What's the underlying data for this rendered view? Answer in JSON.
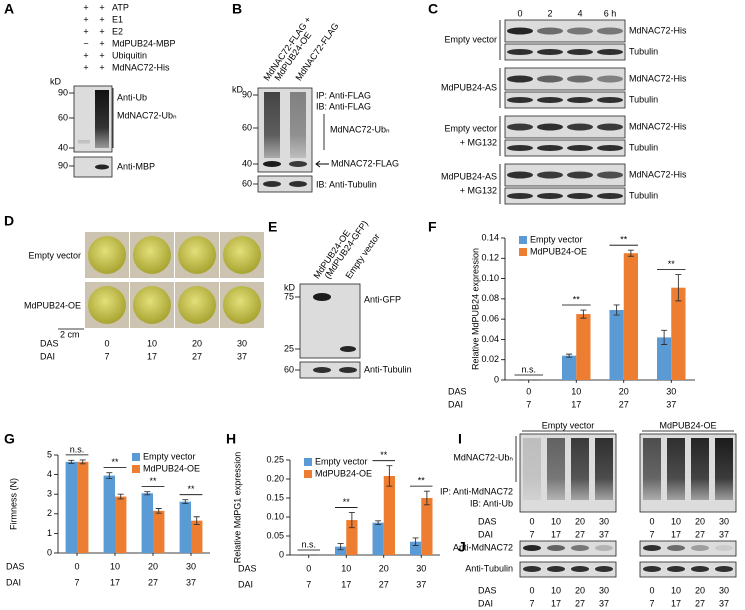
{
  "chart_data": [
    {
      "type": "bar",
      "label": "F",
      "y_label": "Relative MdPUB24 expression",
      "categories": [
        "0",
        "10",
        "20",
        "30"
      ],
      "categories_2": [
        "7",
        "17",
        "27",
        "37"
      ],
      "category_rows": [
        "DAS",
        "DAI"
      ],
      "series": [
        {
          "name": "Empty vector",
          "color": "#5b9bd5",
          "values": [
            0,
            0.024,
            0.069,
            0.042
          ],
          "errors": [
            0,
            0.0015,
            0.005,
            0.007
          ]
        },
        {
          "name": "MdPUB24-OE",
          "color": "#ed7d31",
          "values": [
            0,
            0.065,
            0.125,
            0.091
          ],
          "errors": [
            0,
            0.004,
            0.003,
            0.013
          ]
        }
      ],
      "annotations": [
        "n.s.",
        "**",
        "**",
        "**"
      ],
      "ylim": [
        0,
        0.14
      ],
      "yticks": [
        0,
        0.02,
        0.04,
        0.06,
        0.08,
        {
          "value": 0.1,
          "label": "0.10"
        },
        0.12,
        0.14
      ],
      "legend": "upper left"
    },
    {
      "type": "bar",
      "label": "G",
      "y_label": "Firmness (N)",
      "categories": [
        "0",
        "10",
        "20",
        "30"
      ],
      "categories_2": [
        "7",
        "17",
        "27",
        "37"
      ],
      "category_rows": [
        "DAS",
        "DAI"
      ],
      "series": [
        {
          "name": "Empty vector",
          "color": "#5b9bd5",
          "values": [
            4.65,
            3.95,
            3.05,
            2.62
          ],
          "errors": [
            0.08,
            0.15,
            0.08,
            0.1
          ]
        },
        {
          "name": "MdPUB24-OE",
          "color": "#ed7d31",
          "values": [
            4.65,
            2.88,
            2.15,
            1.65
          ],
          "errors": [
            0.1,
            0.12,
            0.12,
            0.2
          ]
        }
      ],
      "annotations": [
        "n.s.",
        "**",
        "**",
        "**"
      ],
      "ylim": [
        0,
        5
      ],
      "yticks": [
        0,
        1,
        2,
        3,
        4,
        5
      ],
      "legend": "upper right"
    },
    {
      "type": "bar",
      "label": "H",
      "y_label": "Relative MdPG1 expression",
      "categories": [
        "0",
        "10",
        "20",
        "30"
      ],
      "categories_2": [
        "7",
        "17",
        "27",
        "37"
      ],
      "category_rows": [
        "DAS",
        "DAI"
      ],
      "series": [
        {
          "name": "Empty vector",
          "color": "#5b9bd5",
          "values": [
            0,
            0.022,
            0.085,
            0.035
          ],
          "errors": [
            0,
            0.008,
            0.005,
            0.01
          ]
        },
        {
          "name": "MdPUB24-OE",
          "color": "#ed7d31",
          "values": [
            0,
            0.092,
            0.208,
            0.15
          ],
          "errors": [
            0,
            0.02,
            0.027,
            0.018
          ]
        }
      ],
      "annotations": [
        "n.s.",
        "**",
        "**",
        "**"
      ],
      "ylim": [
        0,
        0.25
      ],
      "yticks": [
        0,
        0.05,
        {
          "value": 0.1,
          "label": "0.10"
        },
        0.15,
        {
          "value": 0.2,
          "label": "0.20"
        },
        0.25
      ],
      "legend": "upper left"
    }
  ],
  "panels": {
    "A": {
      "label": "A",
      "conditions": [
        {
          "name": "ATP",
          "signs": [
            "+",
            "+"
          ]
        },
        {
          "name": "E1",
          "signs": [
            "+",
            "+"
          ]
        },
        {
          "name": "E2",
          "signs": [
            "+",
            "+"
          ]
        },
        {
          "name": "MdPUB24-MBP",
          "signs": [
            "−",
            "+"
          ]
        },
        {
          "name": "Ubiquitin",
          "signs": [
            "+",
            "+"
          ]
        },
        {
          "name": "MdNAC72-His",
          "signs": [
            "+",
            "+"
          ]
        }
      ],
      "kd": "kD",
      "markers_upper": [
        "90",
        "60",
        "40"
      ],
      "markers_lower": [
        "90"
      ],
      "labels": [
        "Anti-Ub",
        "MdNAC72-Ubₙ",
        "Anti-MBP"
      ]
    },
    "B": {
      "label": "B",
      "lanes": [
        [
          "MdNAC72-FLAG +",
          "MdPUB24-OE"
        ],
        [
          "MdNAC72-FLAG"
        ]
      ],
      "kd": "kD",
      "markers_upper": [
        "90",
        "60",
        "40"
      ],
      "markers_lower": [
        "60"
      ],
      "labels": [
        "IP: Anti-FLAG",
        "IB: Anti-FLAG",
        "MdNAC72-Ubₙ",
        "MdNAC72-FLAG",
        "IB: Anti-Tubulin"
      ]
    },
    "C": {
      "label": "C",
      "times": [
        "0",
        "2",
        "4",
        "6 h"
      ],
      "groups": [
        {
          "lines": [
            "Empty vector"
          ],
          "bands": [
            "MdNAC72-His",
            "Tubulin"
          ]
        },
        {
          "lines": [
            "MdPUB24-AS"
          ],
          "bands": [
            "MdNAC72-His",
            "Tubulin"
          ]
        },
        {
          "lines": [
            "Empty vector",
            "+ MG132"
          ],
          "bands": [
            "MdNAC72-His",
            "Tubulin"
          ]
        },
        {
          "lines": [
            "MdPUB24-AS",
            "+ MG132"
          ],
          "bands": [
            "MdNAC72-His",
            "Tubulin"
          ]
        }
      ]
    },
    "D": {
      "label": "D",
      "rows": [
        "Empty vector",
        "MdPUB24-OE"
      ],
      "scale": "2 cm",
      "row_labels": [
        "DAS",
        "DAI"
      ],
      "das": [
        "0",
        "10",
        "20",
        "30"
      ],
      "dai": [
        "7",
        "17",
        "27",
        "37"
      ]
    },
    "E": {
      "label": "E",
      "lanes": [
        [
          "MdPUB24-OE",
          "(MdPUB24-GFP)"
        ],
        [
          "Empty vector"
        ]
      ],
      "kd": "kD",
      "markers_upper": [
        "75",
        "25"
      ],
      "markers_lower": [
        "60"
      ],
      "labels": [
        "Anti-GFP",
        "Anti-Tubulin"
      ]
    },
    "I": {
      "label": "I",
      "row_labels": [
        "DAS",
        "DAI"
      ],
      "labels": [
        "MdNAC72-Ubₙ",
        "IP: Anti-MdNAC72",
        "IB: Anti-Ub"
      ],
      "groups": [
        {
          "name": "Empty vector",
          "das": [
            "0",
            "10",
            "20",
            "30"
          ],
          "dai": [
            "7",
            "17",
            "27",
            "37"
          ]
        },
        {
          "name": "MdPUB24-OE",
          "das": [
            "0",
            "10",
            "20",
            "30"
          ],
          "dai": [
            "7",
            "17",
            "27",
            "37"
          ]
        }
      ]
    },
    "J": {
      "label": "J",
      "row_labels": [
        "DAS",
        "DAI"
      ],
      "labels": [
        "Anti-MdNAC72",
        "Anti-Tubulin"
      ],
      "groups": [
        {
          "das": [
            "0",
            "10",
            "20",
            "30"
          ],
          "dai": [
            "7",
            "17",
            "27",
            "37"
          ]
        },
        {
          "das": [
            "0",
            "10",
            "20",
            "30"
          ],
          "dai": [
            "7",
            "17",
            "27",
            "37"
          ]
        }
      ]
    }
  }
}
